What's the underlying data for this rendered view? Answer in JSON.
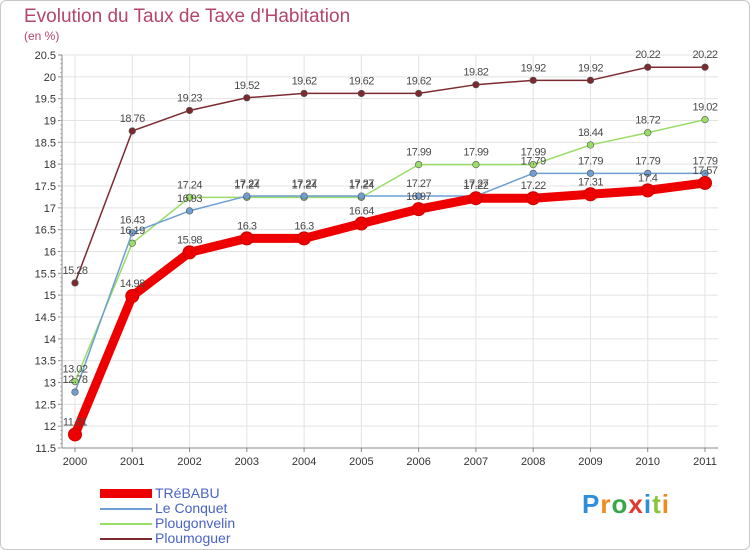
{
  "title": "Evolution du Taux de Taxe d'Habitation",
  "subtitle": "(en %)",
  "logo": "Proxiti",
  "chart_data": {
    "type": "line",
    "x": [
      "2000",
      "2001",
      "2002",
      "2003",
      "2004",
      "2005",
      "2006",
      "2007",
      "2008",
      "2009",
      "2010",
      "2011"
    ],
    "ylim": [
      11.5,
      20.5
    ],
    "yticks": [
      "11.5",
      "12",
      "12.5",
      "13",
      "13.5",
      "14",
      "14.5",
      "15",
      "15.5",
      "16",
      "16.5",
      "17",
      "17.5",
      "18",
      "18.5",
      "19",
      "19.5",
      "20",
      "20.5"
    ],
    "grid": true,
    "legend_position": "bottom-left",
    "series": [
      {
        "name": "Ploumoguer",
        "color": "#7b2b30",
        "values": [
          15.28,
          18.76,
          19.23,
          19.52,
          19.62,
          19.62,
          19.62,
          19.82,
          19.92,
          19.92,
          20.22,
          20.22
        ]
      },
      {
        "name": "Plougonvelin",
        "color": "#99dd66",
        "values": [
          13.02,
          16.19,
          17.24,
          17.24,
          17.24,
          17.24,
          17.99,
          17.99,
          17.99,
          18.44,
          18.72,
          19.02
        ]
      },
      {
        "name": "Le Conquet",
        "color": "#6e9fd2",
        "values": [
          12.78,
          16.43,
          16.93,
          17.27,
          17.27,
          17.27,
          17.27,
          17.27,
          17.79,
          17.79,
          17.79,
          17.79
        ]
      },
      {
        "name": "TRéBABU",
        "color": "#ee0000",
        "values": [
          11.81,
          14.98,
          15.98,
          16.3,
          16.3,
          16.64,
          16.97,
          17.22,
          17.22,
          17.31,
          17.4,
          17.57
        ]
      }
    ]
  },
  "legend": [
    {
      "label": "TRéBABU",
      "color": "#ee0000"
    },
    {
      "label": "Le Conquet",
      "color": "#6e9fd2"
    },
    {
      "label": "Plougonvelin",
      "color": "#99dd66"
    },
    {
      "label": "Ploumoguer",
      "color": "#7b2b30"
    }
  ],
  "colors": {
    "title": "#b5466a",
    "legend_text": "#4a63c6",
    "grid": "#e3e3e3",
    "axis": "#888888"
  }
}
